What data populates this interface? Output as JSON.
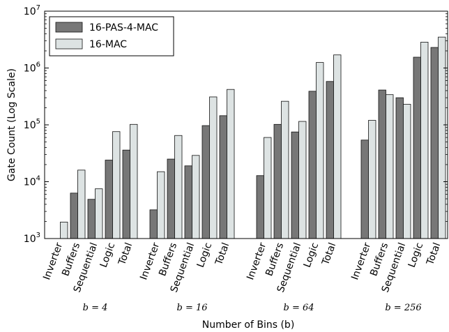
{
  "chart_data": {
    "type": "bar",
    "y_scale": "log",
    "ylim": [
      1000,
      10000000
    ],
    "ylabel": "Gate Count (Log Scale)",
    "xlabel": "Number of Bins (b)",
    "categories": [
      "Inverter",
      "Buffers",
      "Sequential",
      "Logic",
      "Total"
    ],
    "groups": [
      "b = 4",
      "b = 16",
      "b = 64",
      "b = 256"
    ],
    "legend_position": "top-left",
    "grid": false,
    "series": [
      {
        "name": "16-PAS-4-MAC",
        "color": "#777777",
        "values": [
          [
            1000,
            6300,
            4900,
            24000,
            36000
          ],
          [
            3200,
            25000,
            19000,
            97000,
            145000
          ],
          [
            12800,
            102000,
            75000,
            390000,
            580000
          ],
          [
            54000,
            410000,
            300000,
            1550000,
            2300000
          ]
        ]
      },
      {
        "name": "16-MAC",
        "color": "#dde3e3",
        "values": [
          [
            1950,
            16000,
            7500,
            76000,
            102000
          ],
          [
            15000,
            65000,
            29000,
            310000,
            420000
          ],
          [
            60000,
            260000,
            115000,
            1250000,
            1700000
          ],
          [
            120000,
            340000,
            230000,
            2850000,
            3500000
          ]
        ]
      }
    ]
  }
}
